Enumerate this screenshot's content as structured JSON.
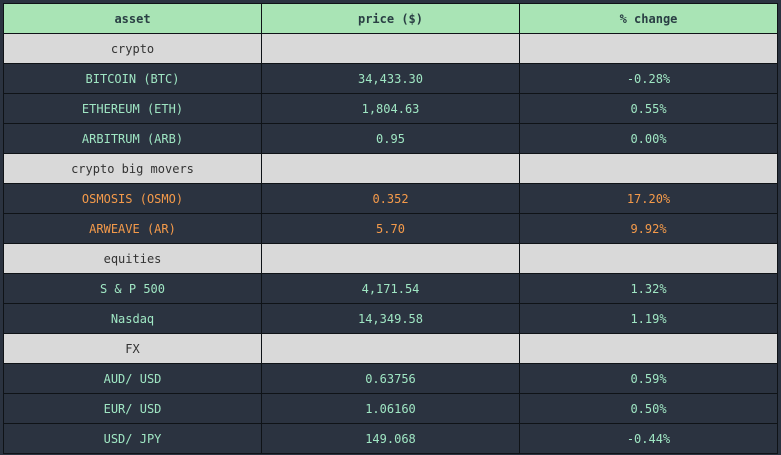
{
  "header": {
    "asset": "asset",
    "price": "price ($)",
    "change": "% change"
  },
  "colors": {
    "header_bg": "#a9e4b5",
    "section_bg": "#d9d9d9",
    "row_bg": "#2b3340",
    "text_normal": "#9fe6c3",
    "text_mover": "#f49a4a"
  },
  "sections": [
    {
      "name": "crypto",
      "rows": [
        {
          "asset": "BITCOIN (BTC)",
          "price": "34,433.30",
          "change": "-0.28%"
        },
        {
          "asset": "ETHEREUM (ETH)",
          "price": "1,804.63",
          "change": "0.55%"
        },
        {
          "asset": "ARBITRUM (ARB)",
          "price": "0.95",
          "change": "0.00%"
        }
      ]
    },
    {
      "name": "crypto big movers",
      "rows": [
        {
          "asset": "OSMOSIS (OSMO)",
          "price": "0.352",
          "change": "17.20%"
        },
        {
          "asset": "ARWEAVE (AR)",
          "price": "5.70",
          "change": "9.92%"
        }
      ]
    },
    {
      "name": "equities",
      "rows": [
        {
          "asset": "S & P 500",
          "price": "4,171.54",
          "change": "1.32%"
        },
        {
          "asset": "Nasdaq",
          "price": "14,349.58",
          "change": "1.19%"
        }
      ]
    },
    {
      "name": "FX",
      "rows": [
        {
          "asset": "AUD/ USD",
          "price": "0.63756",
          "change": "0.59%"
        },
        {
          "asset": "EUR/ USD",
          "price": "1.06160",
          "change": "0.50%"
        },
        {
          "asset": "USD/ JPY",
          "price": "149.068",
          "change": "-0.44%"
        }
      ]
    }
  ]
}
